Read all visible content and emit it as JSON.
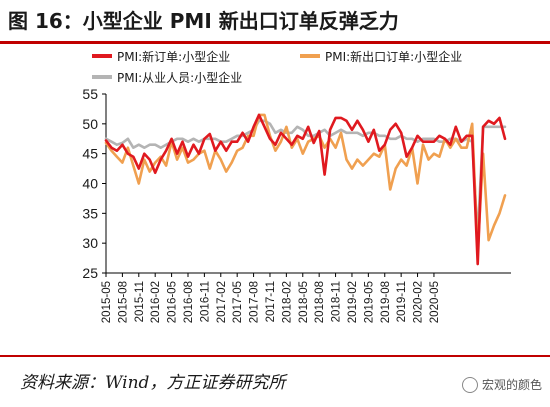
{
  "header": {
    "title": "图 16：小型企业 PMI 新出口订单反弹乏力"
  },
  "footer": {
    "source": "资料来源：Wind，方正证券研究所",
    "watermark": "宏观的颜色"
  },
  "chart_data": {
    "type": "line",
    "title": "图 16：小型企业 PMI 新出口订单反弹乏力",
    "xlabel": "",
    "ylabel": "",
    "ylim": [
      25,
      55
    ],
    "yticks": [
      25,
      30,
      35,
      40,
      45,
      50,
      55
    ],
    "start": "2015-05",
    "tick_labels": [
      "2015-05",
      "2015-08",
      "2015-11",
      "2016-02",
      "2016-05",
      "2016-08",
      "2016-11",
      "2017-02",
      "2017-05",
      "2017-08",
      "2017-11",
      "2018-02",
      "2018-05",
      "2018-08",
      "2018-11",
      "2019-02",
      "2019-05",
      "2019-08",
      "2019-11",
      "2020-02",
      "2020-05"
    ],
    "legend_position": "top",
    "series": [
      {
        "name": "PMI:新订单:小型企业",
        "color": "#e0191f",
        "values": [
          47.2,
          46.0,
          45.5,
          46.5,
          45.0,
          44.5,
          42.5,
          45.0,
          44.0,
          41.8,
          44.0,
          45.5,
          47.5,
          45.0,
          47.0,
          44.5,
          46.5,
          45.0,
          47.5,
          48.3,
          45.5,
          47.0,
          45.5,
          47.0,
          47.0,
          48.5,
          47.0,
          49.5,
          51.5,
          49.5,
          47.5,
          46.5,
          48.5,
          47.5,
          46.5,
          48.0,
          47.5,
          49.5,
          46.8,
          48.8,
          41.5,
          49.0,
          51.0,
          51.0,
          50.5,
          49.0,
          50.5,
          49.0,
          47.0,
          49.0,
          45.5,
          46.5,
          49.0,
          50.0,
          48.5,
          44.5,
          46.0,
          48.0,
          47.0,
          47.0,
          47.0,
          48.0,
          47.5,
          46.5,
          49.5,
          47.0,
          48.0,
          48.0,
          26.5,
          49.5,
          50.5,
          50.0,
          51.0,
          47.5
        ]
      },
      {
        "name": "PMI:新出口订单:小型企业",
        "color": "#f0a050",
        "values": [
          46.8,
          45.5,
          44.5,
          43.5,
          46.0,
          43.0,
          40.0,
          44.0,
          42.0,
          43.5,
          44.5,
          43.0,
          47.0,
          44.0,
          46.0,
          43.5,
          44.0,
          45.0,
          45.5,
          42.5,
          45.5,
          44.0,
          42.0,
          43.5,
          45.5,
          46.0,
          48.0,
          48.0,
          51.5,
          51.5,
          48.0,
          45.5,
          47.0,
          49.5,
          46.0,
          47.5,
          45.0,
          47.0,
          47.5,
          48.0,
          46.0,
          47.5,
          46.0,
          48.5,
          44.0,
          42.5,
          44.0,
          43.0,
          44.0,
          45.0,
          44.5,
          46.5,
          39.0,
          42.5,
          44.0,
          43.0,
          46.0,
          40.0,
          46.5,
          44.0,
          45.0,
          44.5,
          47.5,
          46.0,
          47.5,
          46.0,
          46.0,
          50.0,
          28.5,
          45.0,
          30.5,
          33.0,
          35.0,
          38.0
        ]
      },
      {
        "name": "PMI:从业人员:小型企业",
        "color": "#b4b4b4",
        "values": [
          47.5,
          47.0,
          46.5,
          46.8,
          47.5,
          46.0,
          46.5,
          46.0,
          46.5,
          46.5,
          46.0,
          46.5,
          47.0,
          47.5,
          47.5,
          47.0,
          47.5,
          47.0,
          47.5,
          47.5,
          47.5,
          47.0,
          47.0,
          47.5,
          48.0,
          48.0,
          48.5,
          49.0,
          50.5,
          50.5,
          50.0,
          48.5,
          49.0,
          48.5,
          48.5,
          49.5,
          49.0,
          48.0,
          48.0,
          48.5,
          49.0,
          48.0,
          48.5,
          49.0,
          48.5,
          48.5,
          48.5,
          48.0,
          48.5,
          48.5,
          48.0,
          48.0,
          47.5,
          47.5,
          48.0,
          47.5,
          47.5,
          47.0,
          47.5,
          47.5,
          47.5,
          47.0,
          47.0,
          47.5,
          47.5,
          47.0,
          47.5,
          47.0,
          31.0,
          49.5,
          49.5,
          49.5,
          49.5,
          49.5
        ]
      }
    ]
  }
}
